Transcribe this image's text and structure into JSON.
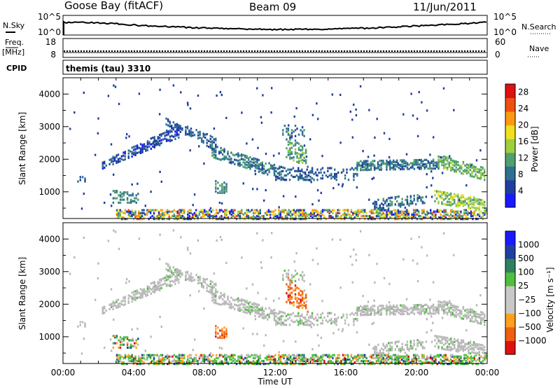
{
  "header": {
    "station": "Goose Bay (fitACF)",
    "beam": "Beam 09",
    "date": "11/Jun/2011"
  },
  "strips": {
    "nsky_label": "N.Sky",
    "nsky_ticks": [
      "10^5",
      "10^0"
    ],
    "nsearch_label": "N.Search",
    "nsearch_ticks": [
      "10^5",
      "10^0"
    ],
    "freq_label_1": "Freq.",
    "freq_label_2": "[MHz]",
    "freq_ticks": [
      "18",
      "8"
    ],
    "nave_label": "Nave",
    "nave_ticks": [
      "60",
      "0"
    ],
    "cpid_label": "CPID",
    "cpid_text": "themis (tau) 3310"
  },
  "colors": {
    "power_scale": [
      "#1a1aff",
      "#1f3f9f",
      "#2f6f8f",
      "#4f9f6f",
      "#9fcf3f",
      "#f0e020",
      "#ff9a10",
      "#f05010",
      "#e01010"
    ],
    "velocity_scale": [
      "#1a1aff",
      "#1f3f9f",
      "#2f7f5f",
      "#4fbf3f",
      "#c8c8c8",
      "#c8c8c8",
      "#ffa020",
      "#f06010",
      "#e01010"
    ],
    "ground_scatter": "#b8b8b8"
  },
  "chart_data": [
    {
      "type": "heatmap",
      "name": "power",
      "ylabel": "Slant Range [km]",
      "ylim": [
        180,
        4500
      ],
      "xlim_hours": [
        0,
        24
      ],
      "yticks": [
        1000,
        2000,
        3000,
        4000
      ],
      "colorbar_label": "Power [dB]",
      "colorbar_ticks": [
        "4",
        "8",
        "12",
        "16",
        "20",
        "24",
        "28"
      ],
      "colorbar_range": [
        0,
        30
      ]
    },
    {
      "type": "heatmap",
      "name": "velocity",
      "ylabel": "Slant Range [km]",
      "ylim": [
        180,
        4500
      ],
      "xlim_hours": [
        0,
        24
      ],
      "yticks": [
        1000,
        2000,
        3000,
        4000
      ],
      "colorbar_label": "Velocity [m s⁻¹]",
      "colorbar_ticks": [
        "1000",
        "500",
        "100",
        "25",
        "−25",
        "−100",
        "−500",
        "−1000"
      ],
      "xlabel": "Time UT",
      "xtick_labels": [
        "00:00",
        "04:00",
        "08:00",
        "12:00",
        "16:00",
        "20:00",
        "00:00"
      ]
    }
  ]
}
